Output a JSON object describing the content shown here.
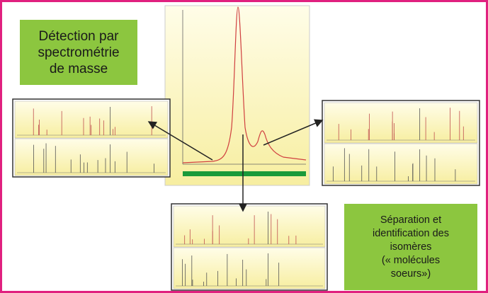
{
  "labels": [
    {
      "lines": [
        "Détection par",
        "spectrométrie",
        "de masse"
      ]
    },
    {
      "lines": [
        "Séparation et",
        "identification des",
        "isomères",
        "(« molécules",
        "soeurs»)"
      ]
    }
  ]
}
